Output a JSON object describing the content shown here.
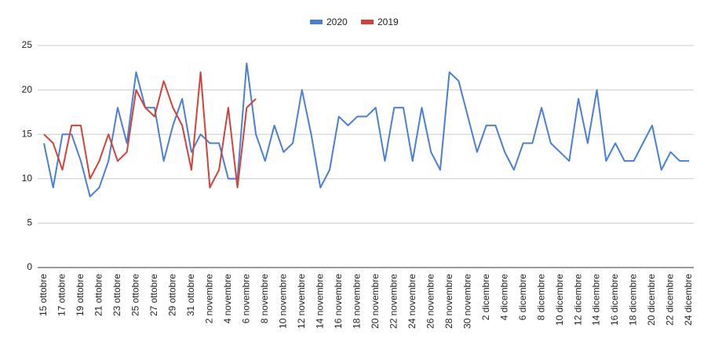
{
  "chart_data": {
    "type": "line",
    "categories": [
      "15 ottobre",
      null,
      "17 ottobre",
      null,
      "19 ottobre",
      null,
      "21 ottobre",
      null,
      "23 ottobre",
      null,
      "25 ottobre",
      null,
      "27 ottobre",
      null,
      "29 ottobre",
      null,
      "31 ottobre",
      null,
      "2 novembre",
      null,
      "4 novembre",
      null,
      "6 novembre",
      null,
      "8 novembre",
      null,
      "10 novembre",
      null,
      "12 novembre",
      null,
      "14 novembre",
      null,
      "16 novembre",
      null,
      "18 novembre",
      null,
      "20 novembre",
      null,
      "22 novembre",
      null,
      "24 novembre",
      null,
      "26 novembre",
      null,
      "28 novembre",
      null,
      "30 novembre",
      null,
      "2 dicembre",
      null,
      "4 dicembre",
      null,
      "6 dicembre",
      null,
      "8 dicembre",
      null,
      "10 dicembre",
      null,
      "12 dicembre",
      null,
      "14 dicembre",
      null,
      "16 dicembre",
      null,
      "18 dicembre",
      null,
      "20 dicembre",
      null,
      "22 dicembre",
      null,
      "24 dicembre"
    ],
    "series": [
      {
        "name": "2020",
        "color": "#4a7fd6",
        "values": [
          14,
          9,
          15,
          15,
          12,
          8,
          9,
          12,
          18,
          14,
          22,
          18,
          18,
          12,
          16,
          19,
          13,
          15,
          14,
          14,
          10,
          10,
          23,
          15,
          12,
          16,
          13,
          14,
          20,
          15,
          9,
          11,
          17,
          16,
          17,
          17,
          18,
          12,
          18,
          18,
          12,
          18,
          13,
          11,
          22,
          21,
          17,
          13,
          16,
          16,
          13,
          11,
          14,
          14,
          18,
          14,
          13,
          12,
          19,
          14,
          20,
          12,
          14,
          12,
          12,
          14,
          16,
          11,
          13,
          12,
          12
        ]
      },
      {
        "name": "2019",
        "color": "#d2413a",
        "values": [
          15,
          14,
          11,
          16,
          16,
          10,
          12,
          15,
          12,
          13,
          20,
          18,
          17,
          21,
          18,
          16,
          11,
          22,
          9,
          11,
          18,
          9,
          18,
          19,
          null,
          null,
          null,
          null,
          null,
          null,
          null,
          null,
          null,
          null,
          null,
          null,
          null,
          null,
          null,
          null,
          null,
          null,
          null,
          null,
          null,
          null,
          null,
          null,
          null,
          null,
          null,
          null,
          null,
          null,
          null,
          null,
          null,
          null,
          null,
          null,
          null,
          null,
          null,
          null,
          null,
          null,
          null,
          null,
          null,
          null,
          null
        ]
      }
    ],
    "ylim": [
      0,
      25
    ],
    "yticks": [
      0,
      5,
      10,
      15,
      20,
      25
    ],
    "grid": true,
    "legend": "top"
  }
}
